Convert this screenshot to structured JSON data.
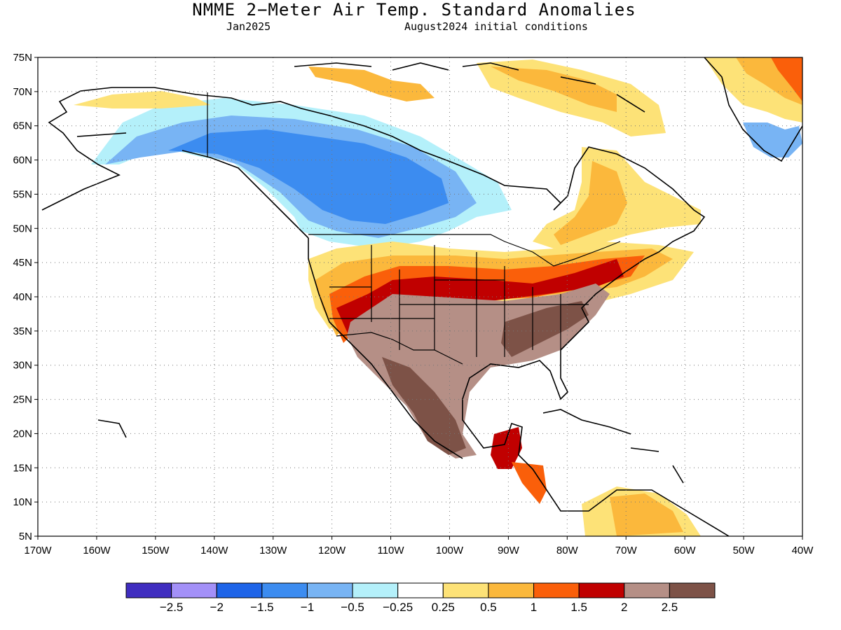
{
  "title": "NMME 2−Meter Air Temp. Standard Anomalies",
  "subtitle_left": "Jan2025",
  "subtitle_right": "August2024 initial conditions",
  "map": {
    "lon_range": [
      -170,
      -40
    ],
    "lat_range": [
      5,
      75
    ],
    "lat_ticks": [
      "75N",
      "70N",
      "65N",
      "60N",
      "55N",
      "50N",
      "45N",
      "40N",
      "35N",
      "30N",
      "25N",
      "20N",
      "15N",
      "10N",
      "5N"
    ],
    "lon_ticks": [
      "170W",
      "160W",
      "150W",
      "140W",
      "130W",
      "120W",
      "110W",
      "100W",
      "90W",
      "80W",
      "70W",
      "60W",
      "50W",
      "40W"
    ],
    "grid": "dotted",
    "ocean_color": "#ffffff",
    "coastline_color": "#000000"
  },
  "colorbar": {
    "colors": [
      "#3f2dbf",
      "#a390f8",
      "#1e64e8",
      "#3c8cf0",
      "#78b4f4",
      "#b4f0fa",
      "#ffffff",
      "#fde277",
      "#fbb83c",
      "#fa5f0a",
      "#c00000",
      "#b58f86",
      "#7d5247"
    ],
    "labels": [
      "−2.5",
      "−2",
      "−1.5",
      "−1",
      "−0.5",
      "−0.25",
      "0.25",
      "0.5",
      "1",
      "1.5",
      "2",
      "2.5"
    ]
  }
}
